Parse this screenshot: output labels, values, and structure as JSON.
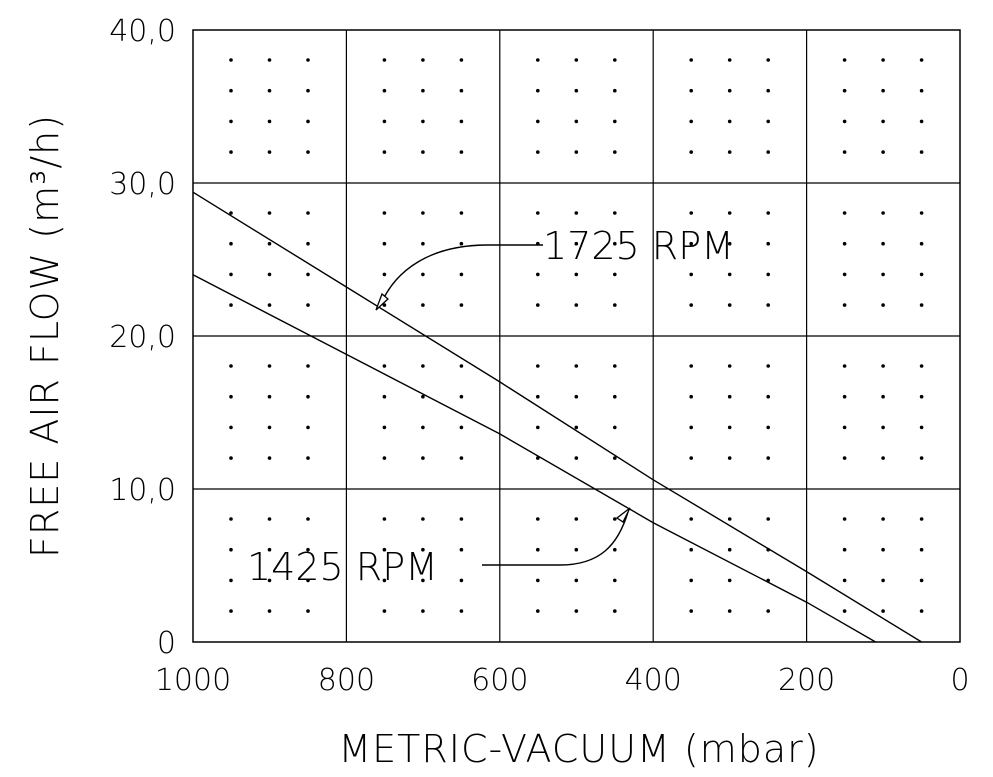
{
  "chart_data": {
    "type": "line",
    "xlabel": "METRIC-VACUUM (mbar)",
    "ylabel": "FREE AIR FLOW (m³/h)",
    "xlim": [
      1000,
      0
    ],
    "ylim": [
      0,
      40
    ],
    "x_reversed": true,
    "x_ticks": [
      "1000",
      "800",
      "600",
      "400",
      "200",
      "0"
    ],
    "y_ticks": [
      "0",
      "10,0",
      "20,0",
      "30,0",
      "40,0"
    ],
    "grid": true,
    "background_dots": true,
    "series": [
      {
        "name": "1725 RPM",
        "x": [
          1000,
          800,
          600,
          400,
          200,
          50
        ],
        "y": [
          29.4,
          23.2,
          17.0,
          10.6,
          4.6,
          0
        ],
        "label_anchor": [
          760,
          22
        ]
      },
      {
        "name": "1425 RPM",
        "x": [
          1000,
          800,
          600,
          400,
          200,
          110
        ],
        "y": [
          24.0,
          18.8,
          13.6,
          7.8,
          2.6,
          0
        ],
        "label_anchor": [
          430,
          8.6
        ]
      }
    ]
  }
}
